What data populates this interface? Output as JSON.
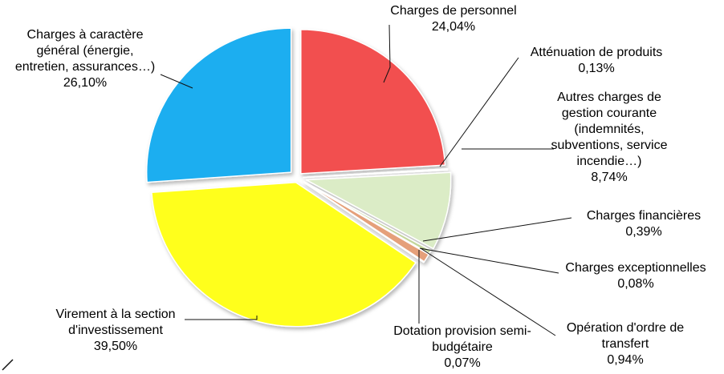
{
  "chart_data": {
    "type": "pie",
    "exploded": true,
    "slices": [
      {
        "lines": [
          "Charges de personnel"
        ],
        "value_label": "24,04%",
        "value": 24.04,
        "color": "#f24f4f"
      },
      {
        "lines": [
          "Atténuation de produits"
        ],
        "value_label": "0,13%",
        "value": 0.13,
        "color": "#f3b8c2"
      },
      {
        "lines": [
          "Autres charges de",
          "gestion courante",
          "(indemnités,",
          "subventions, service",
          "incendie…)"
        ],
        "value_label": "8,74%",
        "value": 8.74,
        "color": "#dbecc6"
      },
      {
        "lines": [
          "Charges financières"
        ],
        "value_label": "0,39%",
        "value": 0.39,
        "color": "#c3d69b"
      },
      {
        "lines": [
          "Charges exceptionnelles"
        ],
        "value_label": "0,08%",
        "value": 0.08,
        "color": "#b3a2c7"
      },
      {
        "lines": [
          "Opération d'ordre de",
          "transfert"
        ],
        "value_label": "0,94%",
        "value": 0.94,
        "color": "#e5a07a"
      },
      {
        "lines": [
          "Dotation provision semi-",
          "budgétaire"
        ],
        "value_label": "0,07%",
        "value": 0.07,
        "color": "#c6d9f1"
      },
      {
        "lines": [
          "Virement à la section",
          "d'investissement"
        ],
        "value_label": "39,50%",
        "value": 39.5,
        "color": "#ffff1a"
      },
      {
        "lines": [
          "Charges à caractère",
          "général (énergie,",
          "entretien, assurances…)"
        ],
        "value_label": "26,10%",
        "value": 26.1,
        "color": "#1aaef0"
      }
    ]
  }
}
